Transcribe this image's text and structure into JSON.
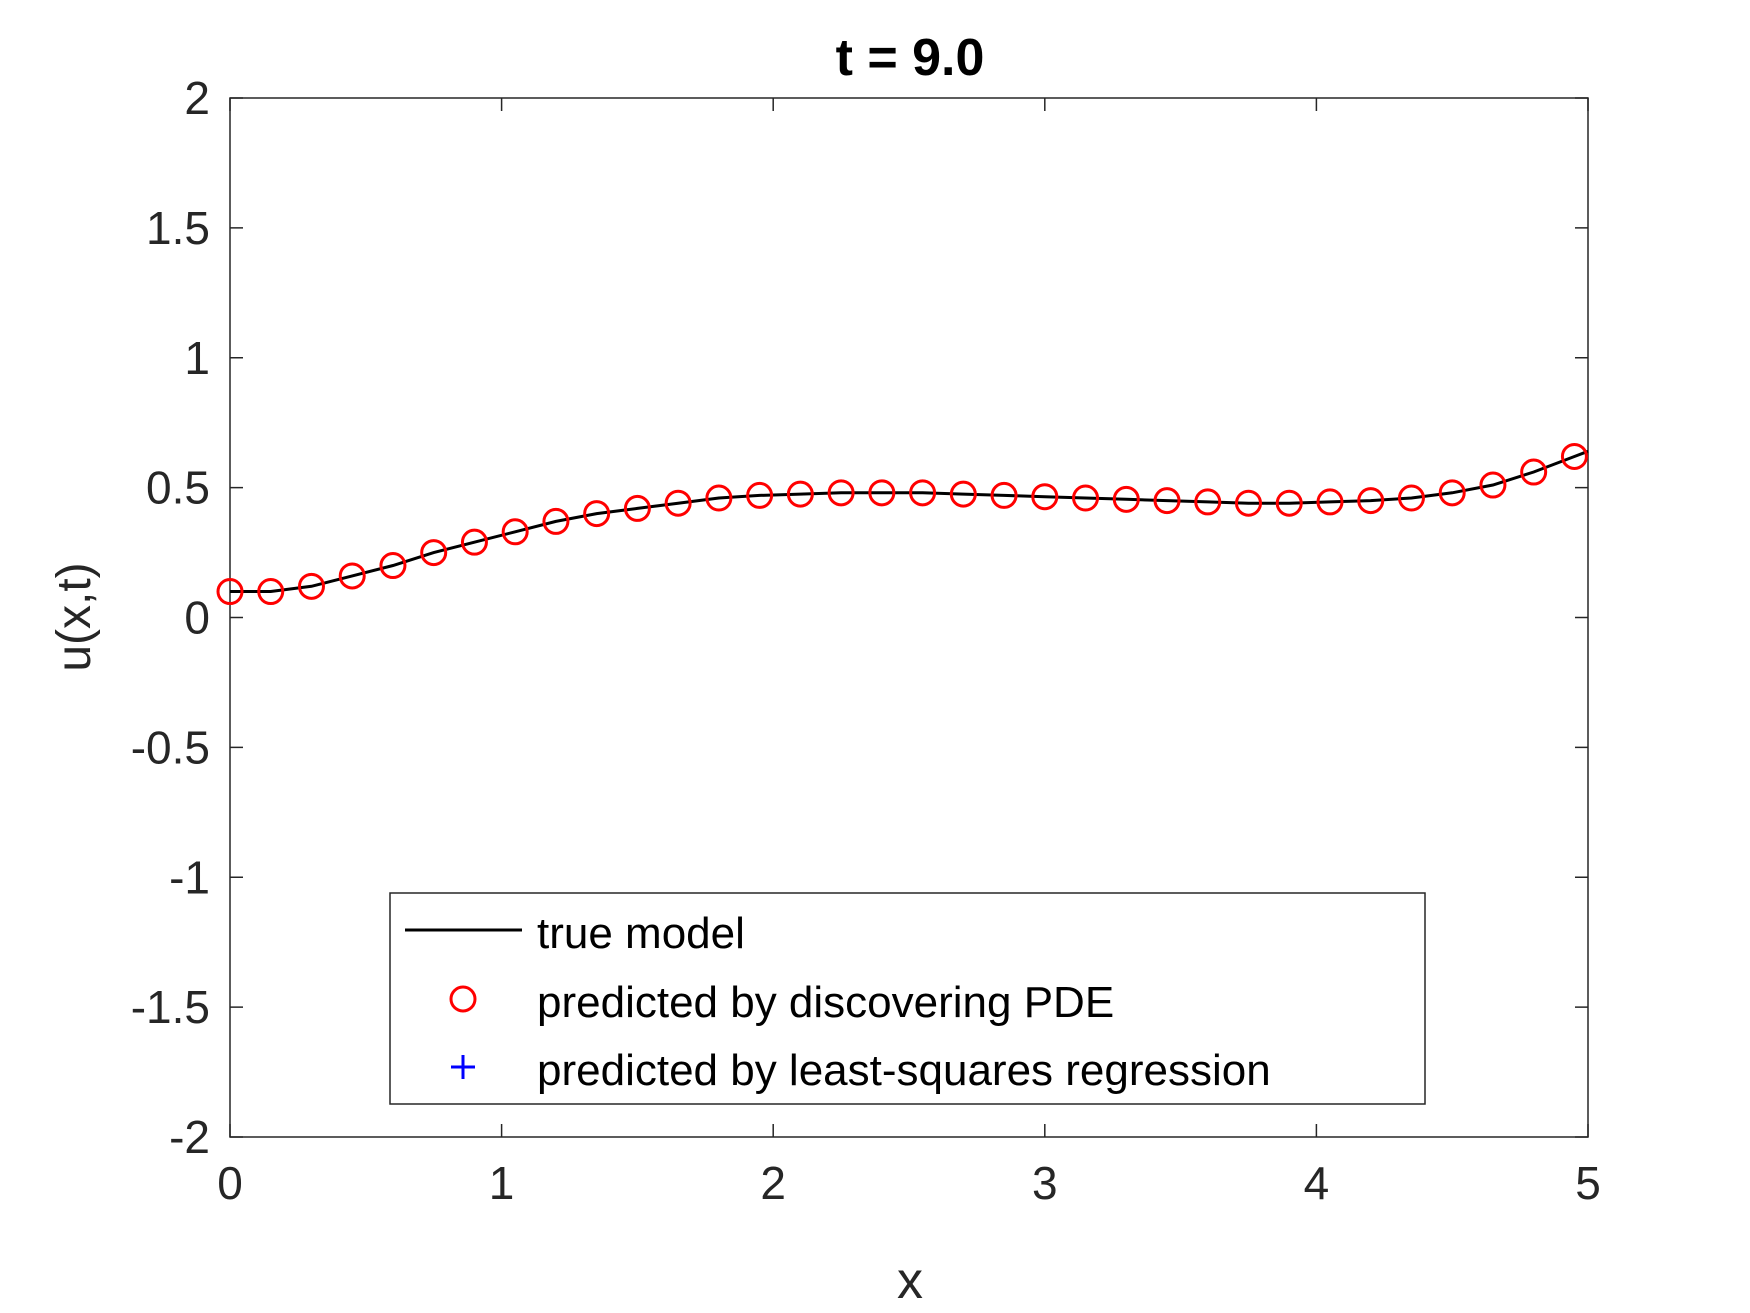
{
  "chart_data": {
    "type": "line",
    "title": "t = 9.0",
    "xlabel": "x",
    "ylabel": "u(x,t)",
    "xlim": [
      0,
      5
    ],
    "ylim": [
      -2,
      2
    ],
    "xticks": [
      "0",
      "1",
      "2",
      "3",
      "4",
      "5"
    ],
    "yticks": [
      "2",
      "1.5",
      "1",
      "0.5",
      "0",
      "-0.5",
      "-1",
      "-1.5",
      "-2"
    ],
    "xtick_values": [
      0,
      1,
      2,
      3,
      4,
      5
    ],
    "ytick_values": [
      2,
      1.5,
      1,
      0.5,
      0,
      -0.5,
      -1,
      -1.5,
      -2
    ],
    "grid": false,
    "legend_position": "bottom-center",
    "series": [
      {
        "name": "true model",
        "style": "line",
        "color": "#000000",
        "x": [
          0,
          0.15,
          0.3,
          0.45,
          0.6,
          0.75,
          0.9,
          1.05,
          1.2,
          1.35,
          1.5,
          1.65,
          1.8,
          1.95,
          2.1,
          2.25,
          2.4,
          2.55,
          2.7,
          2.85,
          3.0,
          3.15,
          3.3,
          3.45,
          3.6,
          3.75,
          3.9,
          4.05,
          4.2,
          4.35,
          4.5,
          4.65,
          4.8,
          4.95,
          5.0
        ],
        "y": [
          0.1,
          0.1,
          0.12,
          0.16,
          0.2,
          0.25,
          0.29,
          0.33,
          0.37,
          0.4,
          0.42,
          0.44,
          0.46,
          0.47,
          0.475,
          0.48,
          0.48,
          0.48,
          0.475,
          0.47,
          0.465,
          0.46,
          0.455,
          0.45,
          0.445,
          0.44,
          0.44,
          0.445,
          0.45,
          0.46,
          0.48,
          0.51,
          0.56,
          0.62,
          0.64
        ]
      },
      {
        "name": "predicted by discovering PDE",
        "style": "circle",
        "color": "#ff0000",
        "x": [
          0,
          0.15,
          0.3,
          0.45,
          0.6,
          0.75,
          0.9,
          1.05,
          1.2,
          1.35,
          1.5,
          1.65,
          1.8,
          1.95,
          2.1,
          2.25,
          2.4,
          2.55,
          2.7,
          2.85,
          3.0,
          3.15,
          3.3,
          3.45,
          3.6,
          3.75,
          3.9,
          4.05,
          4.2,
          4.35,
          4.5,
          4.65,
          4.8,
          4.95
        ],
        "y": [
          0.1,
          0.1,
          0.12,
          0.16,
          0.2,
          0.25,
          0.29,
          0.33,
          0.37,
          0.4,
          0.42,
          0.44,
          0.46,
          0.47,
          0.475,
          0.48,
          0.48,
          0.48,
          0.475,
          0.47,
          0.465,
          0.46,
          0.455,
          0.45,
          0.445,
          0.44,
          0.44,
          0.445,
          0.45,
          0.46,
          0.48,
          0.51,
          0.56,
          0.62
        ]
      },
      {
        "name": "predicted by least-squares regression",
        "style": "plus",
        "color": "#0000ff",
        "x": [],
        "y": []
      }
    ]
  }
}
